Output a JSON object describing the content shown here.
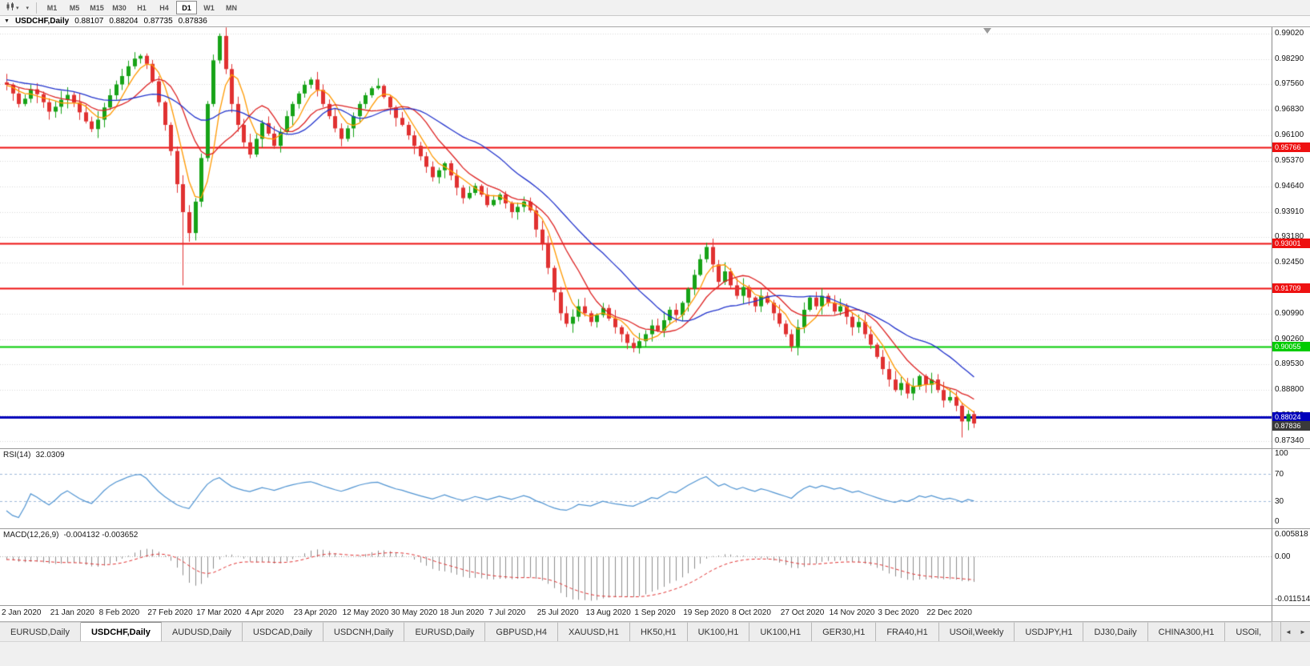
{
  "toolbar": {
    "timeframes": [
      "M1",
      "M5",
      "M15",
      "M30",
      "H1",
      "H4",
      "D1",
      "W1",
      "MN"
    ],
    "active_timeframe": "D1"
  },
  "chart_header": {
    "symbol_period": "USDCHF,Daily",
    "open": "0.88107",
    "high": "0.88204",
    "low": "0.87735",
    "close": "0.87836"
  },
  "price_axis": {
    "max": 0.992,
    "min": 0.8713,
    "ticks": [
      "0.99020",
      "0.98290",
      "0.97560",
      "0.96830",
      "0.96100",
      "0.95370",
      "0.94640",
      "0.93910",
      "0.93180",
      "0.92450",
      "0.91720",
      "0.90990",
      "0.90260",
      "0.89530",
      "0.88800",
      "0.88070",
      "0.87340"
    ]
  },
  "panes": {
    "rsi": {
      "name": "RSI(14)",
      "value": "32.0309",
      "ticks": [
        "100",
        "70",
        "30",
        "0"
      ],
      "dashed_levels": [
        70,
        30
      ],
      "line_color": "#4f93d1"
    },
    "macd": {
      "name": "MACD(12,26,9)",
      "values": "-0.004132 -0.003652",
      "ticks": [
        "0.005818",
        "0.00",
        "-0.011514"
      ],
      "max": 0.0072,
      "min": -0.0132,
      "hist_color": "#8c8c8c",
      "signal_color": "#e03131"
    }
  },
  "date_axis": {
    "labels": [
      "2 Jan 2020",
      "21 Jan 2020",
      "8 Feb 2020",
      "27 Feb 2020",
      "17 Mar 2020",
      "4 Apr 2020",
      "23 Apr 2020",
      "12 May 2020",
      "30 May 2020",
      "18 Jun 2020",
      "7 Jul 2020",
      "25 Jul 2020",
      "13 Aug 2020",
      "1 Sep 2020",
      "19 Sep 2020",
      "8 Oct 2020",
      "27 Oct 2020",
      "14 Nov 2020",
      "3 Dec 2020",
      "22 Dec 2020"
    ]
  },
  "tabs": {
    "items": [
      "EURUSD,Daily",
      "USDCHF,Daily",
      "AUDUSD,Daily",
      "USDCAD,Daily",
      "USDCNH,Daily",
      "EURUSD,Daily",
      "GBPUSD,H4",
      "XAUUSD,H1",
      "HK50,H1",
      "UK100,H1",
      "UK100,H1",
      "GER30,H1",
      "FRA40,H1",
      "USOil,Weekly",
      "USDJPY,H1",
      "DJ30,Daily",
      "CHINA300,H1",
      "USOil,"
    ],
    "active_index": 1,
    "scroll_left": "◄",
    "scroll_right": "►"
  },
  "chart_data": {
    "type": "candlestick",
    "symbol": "USDCHF",
    "period": "Daily",
    "first_open": 0.9762,
    "closes": [
      0.9755,
      0.973,
      0.97,
      0.9715,
      0.9742,
      0.9728,
      0.9705,
      0.9678,
      0.9692,
      0.9712,
      0.9726,
      0.9704,
      0.9676,
      0.965,
      0.9628,
      0.9655,
      0.969,
      0.9725,
      0.9756,
      0.978,
      0.9808,
      0.983,
      0.9838,
      0.9815,
      0.9765,
      0.9705,
      0.964,
      0.9565,
      0.947,
      0.939,
      0.933,
      0.942,
      0.9545,
      0.97,
      0.9825,
      0.9895,
      0.98,
      0.97,
      0.964,
      0.959,
      0.9555,
      0.96,
      0.9645,
      0.9615,
      0.958,
      0.962,
      0.9665,
      0.97,
      0.973,
      0.9755,
      0.977,
      0.974,
      0.97,
      0.9665,
      0.963,
      0.96,
      0.963,
      0.9665,
      0.97,
      0.9725,
      0.9745,
      0.9752,
      0.972,
      0.969,
      0.966,
      0.964,
      0.961,
      0.958,
      0.955,
      0.952,
      0.949,
      0.951,
      0.953,
      0.9495,
      0.946,
      0.943,
      0.9445,
      0.9465,
      0.944,
      0.941,
      0.9425,
      0.944,
      0.9415,
      0.939,
      0.9405,
      0.942,
      0.9395,
      0.934,
      0.93,
      0.923,
      0.916,
      0.91,
      0.907,
      0.909,
      0.912,
      0.91,
      0.9075,
      0.9095,
      0.9115,
      0.9085,
      0.906,
      0.904,
      0.9015,
      0.9,
      0.902,
      0.904,
      0.9065,
      0.905,
      0.908,
      0.911,
      0.9095,
      0.913,
      0.917,
      0.921,
      0.9255,
      0.929,
      0.924,
      0.919,
      0.922,
      0.918,
      0.915,
      0.9175,
      0.9145,
      0.912,
      0.915,
      0.913,
      0.91,
      0.907,
      0.904,
      0.9005,
      0.906,
      0.911,
      0.9145,
      0.912,
      0.915,
      0.913,
      0.9105,
      0.912,
      0.909,
      0.906,
      0.9075,
      0.904,
      0.901,
      0.8975,
      0.894,
      0.891,
      0.888,
      0.89,
      0.887,
      0.889,
      0.892,
      0.8895,
      0.891,
      0.888,
      0.885,
      0.886,
      0.8835,
      0.879,
      0.8811,
      0.8784
    ],
    "seed_closes": [
      0.98,
      0.9797,
      0.9794,
      0.9791,
      0.9788,
      0.9786,
      0.9784,
      0.9782,
      0.978,
      0.9778,
      0.9776,
      0.9774,
      0.9772,
      0.977,
      0.9768,
      0.9766,
      0.9764,
      0.9762,
      0.976,
      0.9758,
      0.9756,
      0.9754,
      0.9752,
      0.975
    ],
    "wick_amp": 0.0026,
    "special_lows": {
      "29": 0.918,
      "103": 0.8988,
      "129": 0.899,
      "157": 0.8744
    },
    "special_highs": {
      "22": 0.9843,
      "35": 0.9902,
      "115": 0.9302,
      "159": 0.882
    },
    "up_color": "#17a317",
    "down_color": "#e03131",
    "moving_averages": [
      {
        "period": 5,
        "color": "#ff9900"
      },
      {
        "period": 10,
        "color": "#dd2222"
      },
      {
        "period": 22,
        "color": "#2233cc"
      }
    ],
    "levels": [
      {
        "value": 0.95766,
        "label": "0.95766",
        "color": "#ee1111",
        "width": 2
      },
      {
        "value": 0.93001,
        "label": "0.93001",
        "color": "#ee1111",
        "width": 2
      },
      {
        "value": 0.91709,
        "label": "0.91709",
        "color": "#ee1111",
        "width": 2
      },
      {
        "value": 0.90055,
        "label": "0.90055",
        "color": "#00cc00",
        "width": 2
      },
      {
        "value": 0.88024,
        "label": "0.88024",
        "color": "#0000bb",
        "width": 3
      }
    ],
    "current_price": {
      "value": 0.87836,
      "label": "0.87836",
      "badge_bg": "#3a3a3a"
    },
    "grid_color": "#d8d8d8"
  }
}
